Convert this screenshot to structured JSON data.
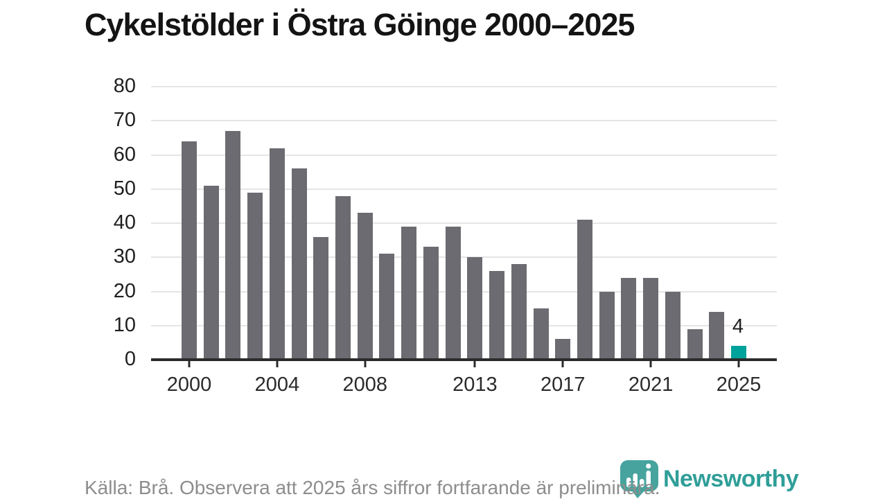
{
  "title": "Cykelstölder i Östra Göinge 2000–2025",
  "footer": {
    "text": "Källa: Brå. Observera att 2025 års siffror fortfarande är preliminära."
  },
  "branding": {
    "name": "Newsworthy",
    "icon": "newsworthy-pin-barchart-icon",
    "icon_color": "#46a39e",
    "wordmark_color": "#2f9e98"
  },
  "colors": {
    "bar": "#6b6b71",
    "highlight": "#00a39b",
    "grid": "#e5e5e5",
    "axis": "#2b2b2b",
    "title_text": "#141414",
    "tick_label": "#2b2b2b",
    "footer_text": "#8d8d8d"
  },
  "chart_data": {
    "type": "bar",
    "title": "Cykelstölder i Östra Göinge 2000–2025",
    "categories": [
      2000,
      2001,
      2002,
      2003,
      2004,
      2005,
      2006,
      2007,
      2008,
      2009,
      2010,
      2011,
      2012,
      2013,
      2014,
      2015,
      2016,
      2017,
      2018,
      2019,
      2020,
      2021,
      2022,
      2023,
      2024,
      2025
    ],
    "values": [
      64,
      51,
      67,
      49,
      62,
      56,
      36,
      48,
      43,
      31,
      39,
      33,
      39,
      30,
      26,
      28,
      15,
      6,
      41,
      20,
      24,
      24,
      20,
      9,
      14,
      4
    ],
    "highlight_index": 25,
    "highlight_label": "4",
    "ylim": [
      0,
      80
    ],
    "y_ticks": [
      0,
      10,
      20,
      30,
      40,
      50,
      60,
      70,
      80
    ],
    "x_tick_labels": [
      "2000",
      "2004",
      "2008",
      "2013",
      "2017",
      "2021",
      "2025"
    ],
    "x_tick_indices": [
      0,
      4,
      8,
      13,
      17,
      21,
      25
    ],
    "grid": "horizontal",
    "legend": "none",
    "xlabel": "",
    "ylabel": ""
  }
}
